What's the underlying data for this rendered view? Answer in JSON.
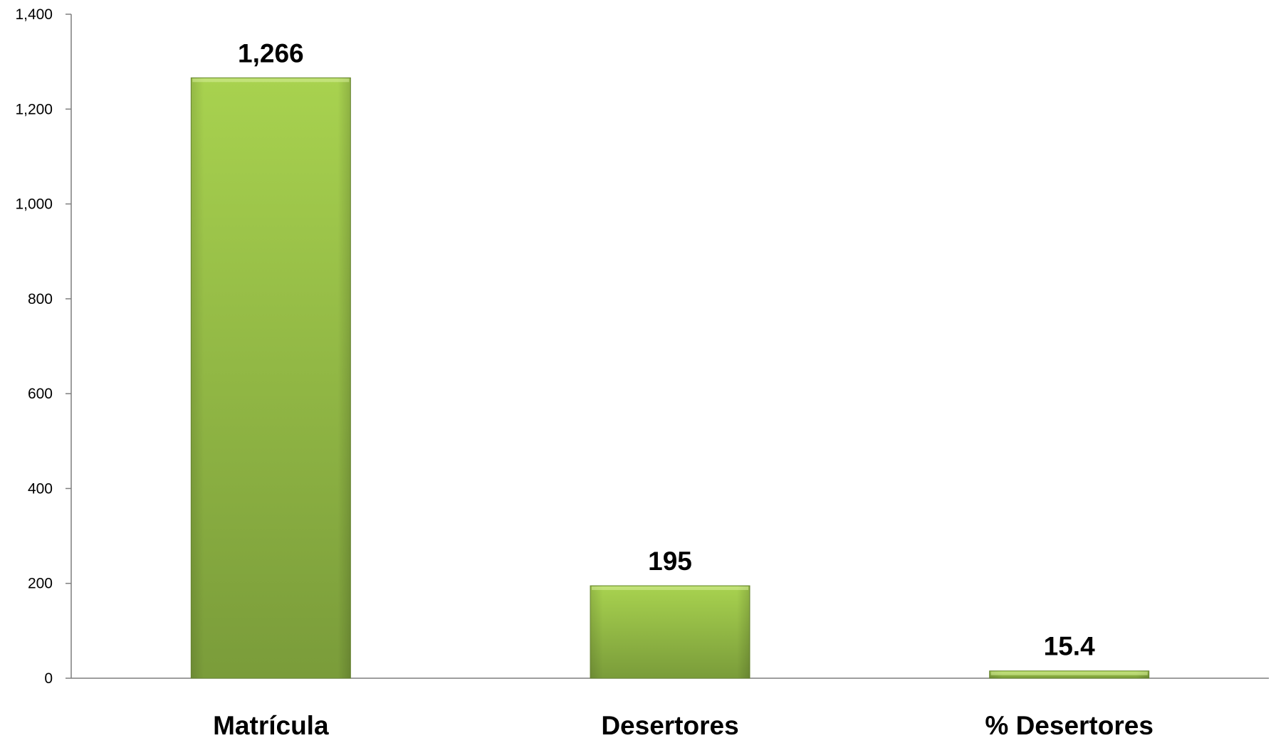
{
  "chart_data": {
    "type": "bar",
    "categories": [
      "Matrícula",
      "Desertores",
      "% Desertores"
    ],
    "values": [
      1266,
      195,
      15.4
    ],
    "data_labels": [
      "1,266",
      "195",
      "15.4"
    ],
    "yticks": [
      0,
      200,
      400,
      600,
      800,
      1000,
      1200,
      1400
    ],
    "ytick_labels": [
      "0",
      "200",
      "400",
      "600",
      "800",
      "1,000",
      "1,200",
      "1,400"
    ],
    "ylim": [
      0,
      1400
    ],
    "grid": false,
    "legend": "none",
    "bar_color_top": "#a8d24f",
    "bar_color_bottom": "#7a9c3a"
  }
}
